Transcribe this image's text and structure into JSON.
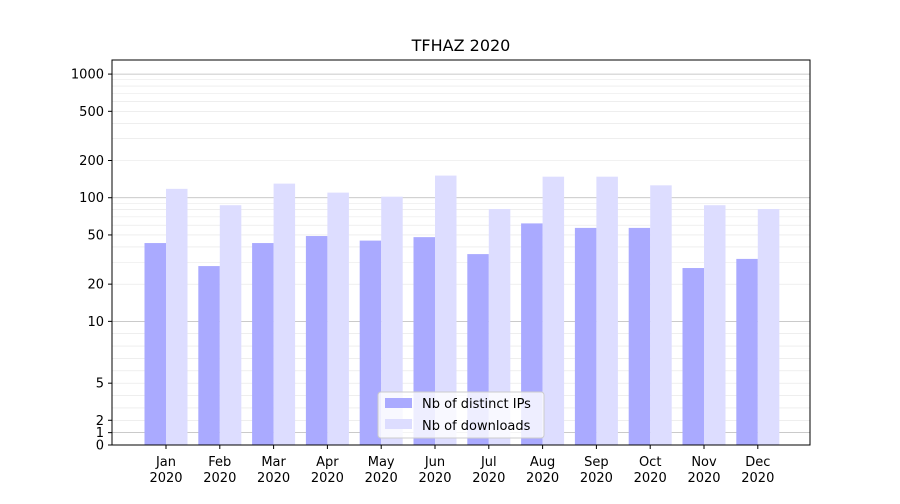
{
  "chart_data": {
    "type": "bar",
    "title": "TFHAZ 2020",
    "xlabel": "",
    "ylabel": "",
    "y_scale": "symlog",
    "ylim": [
      0,
      1300
    ],
    "grid": true,
    "legend_position": "lower center",
    "categories": [
      {
        "month": "Jan",
        "year": "2020"
      },
      {
        "month": "Feb",
        "year": "2020"
      },
      {
        "month": "Mar",
        "year": "2020"
      },
      {
        "month": "Apr",
        "year": "2020"
      },
      {
        "month": "May",
        "year": "2020"
      },
      {
        "month": "Jun",
        "year": "2020"
      },
      {
        "month": "Jul",
        "year": "2020"
      },
      {
        "month": "Aug",
        "year": "2020"
      },
      {
        "month": "Sep",
        "year": "2020"
      },
      {
        "month": "Oct",
        "year": "2020"
      },
      {
        "month": "Nov",
        "year": "2020"
      },
      {
        "month": "Dec",
        "year": "2020"
      }
    ],
    "yticks": [
      0,
      1,
      2,
      5,
      10,
      20,
      50,
      100,
      200,
      500,
      1000
    ],
    "series": [
      {
        "name": "Nb of distinct IPs",
        "color": "#aaaaff",
        "values": [
          43,
          28,
          43,
          49,
          45,
          48,
          35,
          62,
          57,
          57,
          27,
          32
        ]
      },
      {
        "name": "Nb of downloads",
        "color": "#ddddff",
        "values": [
          118,
          87,
          130,
          110,
          102,
          151,
          81,
          148,
          148,
          126,
          87,
          81
        ]
      }
    ]
  }
}
